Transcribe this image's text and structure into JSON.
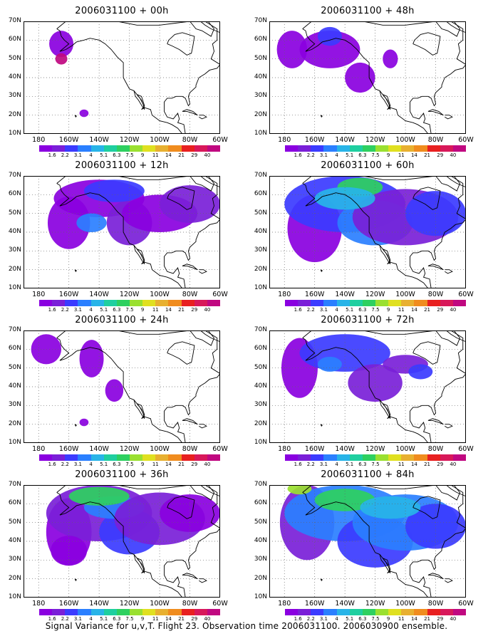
{
  "panels": [
    {
      "title": "2006031100 + 00h",
      "level": 0
    },
    {
      "title": "2006031100 + 48h",
      "level": 4
    },
    {
      "title": "2006031100 + 12h",
      "level": 1
    },
    {
      "title": "2006031100 + 60h",
      "level": 5
    },
    {
      "title": "2006031100 + 24h",
      "level": 2
    },
    {
      "title": "2006031100 + 72h",
      "level": 6
    },
    {
      "title": "2006031100 + 36h",
      "level": 3
    },
    {
      "title": "2006031100 + 84h",
      "level": 7
    }
  ],
  "lat_labels": [
    "70N",
    "60N",
    "50N",
    "40N",
    "30N",
    "20N",
    "10N"
  ],
  "lon_labels": [
    "180",
    "160W",
    "140W",
    "120W",
    "100W",
    "80W",
    "60W"
  ],
  "colorbar": {
    "labels": [
      "1.6",
      "2.2",
      "3.1",
      "4",
      "5.1",
      "6.3",
      "7.5",
      "9",
      "11",
      "14",
      "21",
      "29",
      "40"
    ],
    "colors": [
      "#8a00e0",
      "#7a1fd8",
      "#3b3bff",
      "#2a7fff",
      "#28b4e8",
      "#1fcfa0",
      "#2ed060",
      "#9ae030",
      "#e0e020",
      "#e8b030",
      "#f08c1e",
      "#e82020",
      "#d8185a",
      "#c00880"
    ]
  },
  "footer": "Signal Variance for u,v,T. Flight 23. Observation time 2006031100. 2006030900 ensemble."
}
